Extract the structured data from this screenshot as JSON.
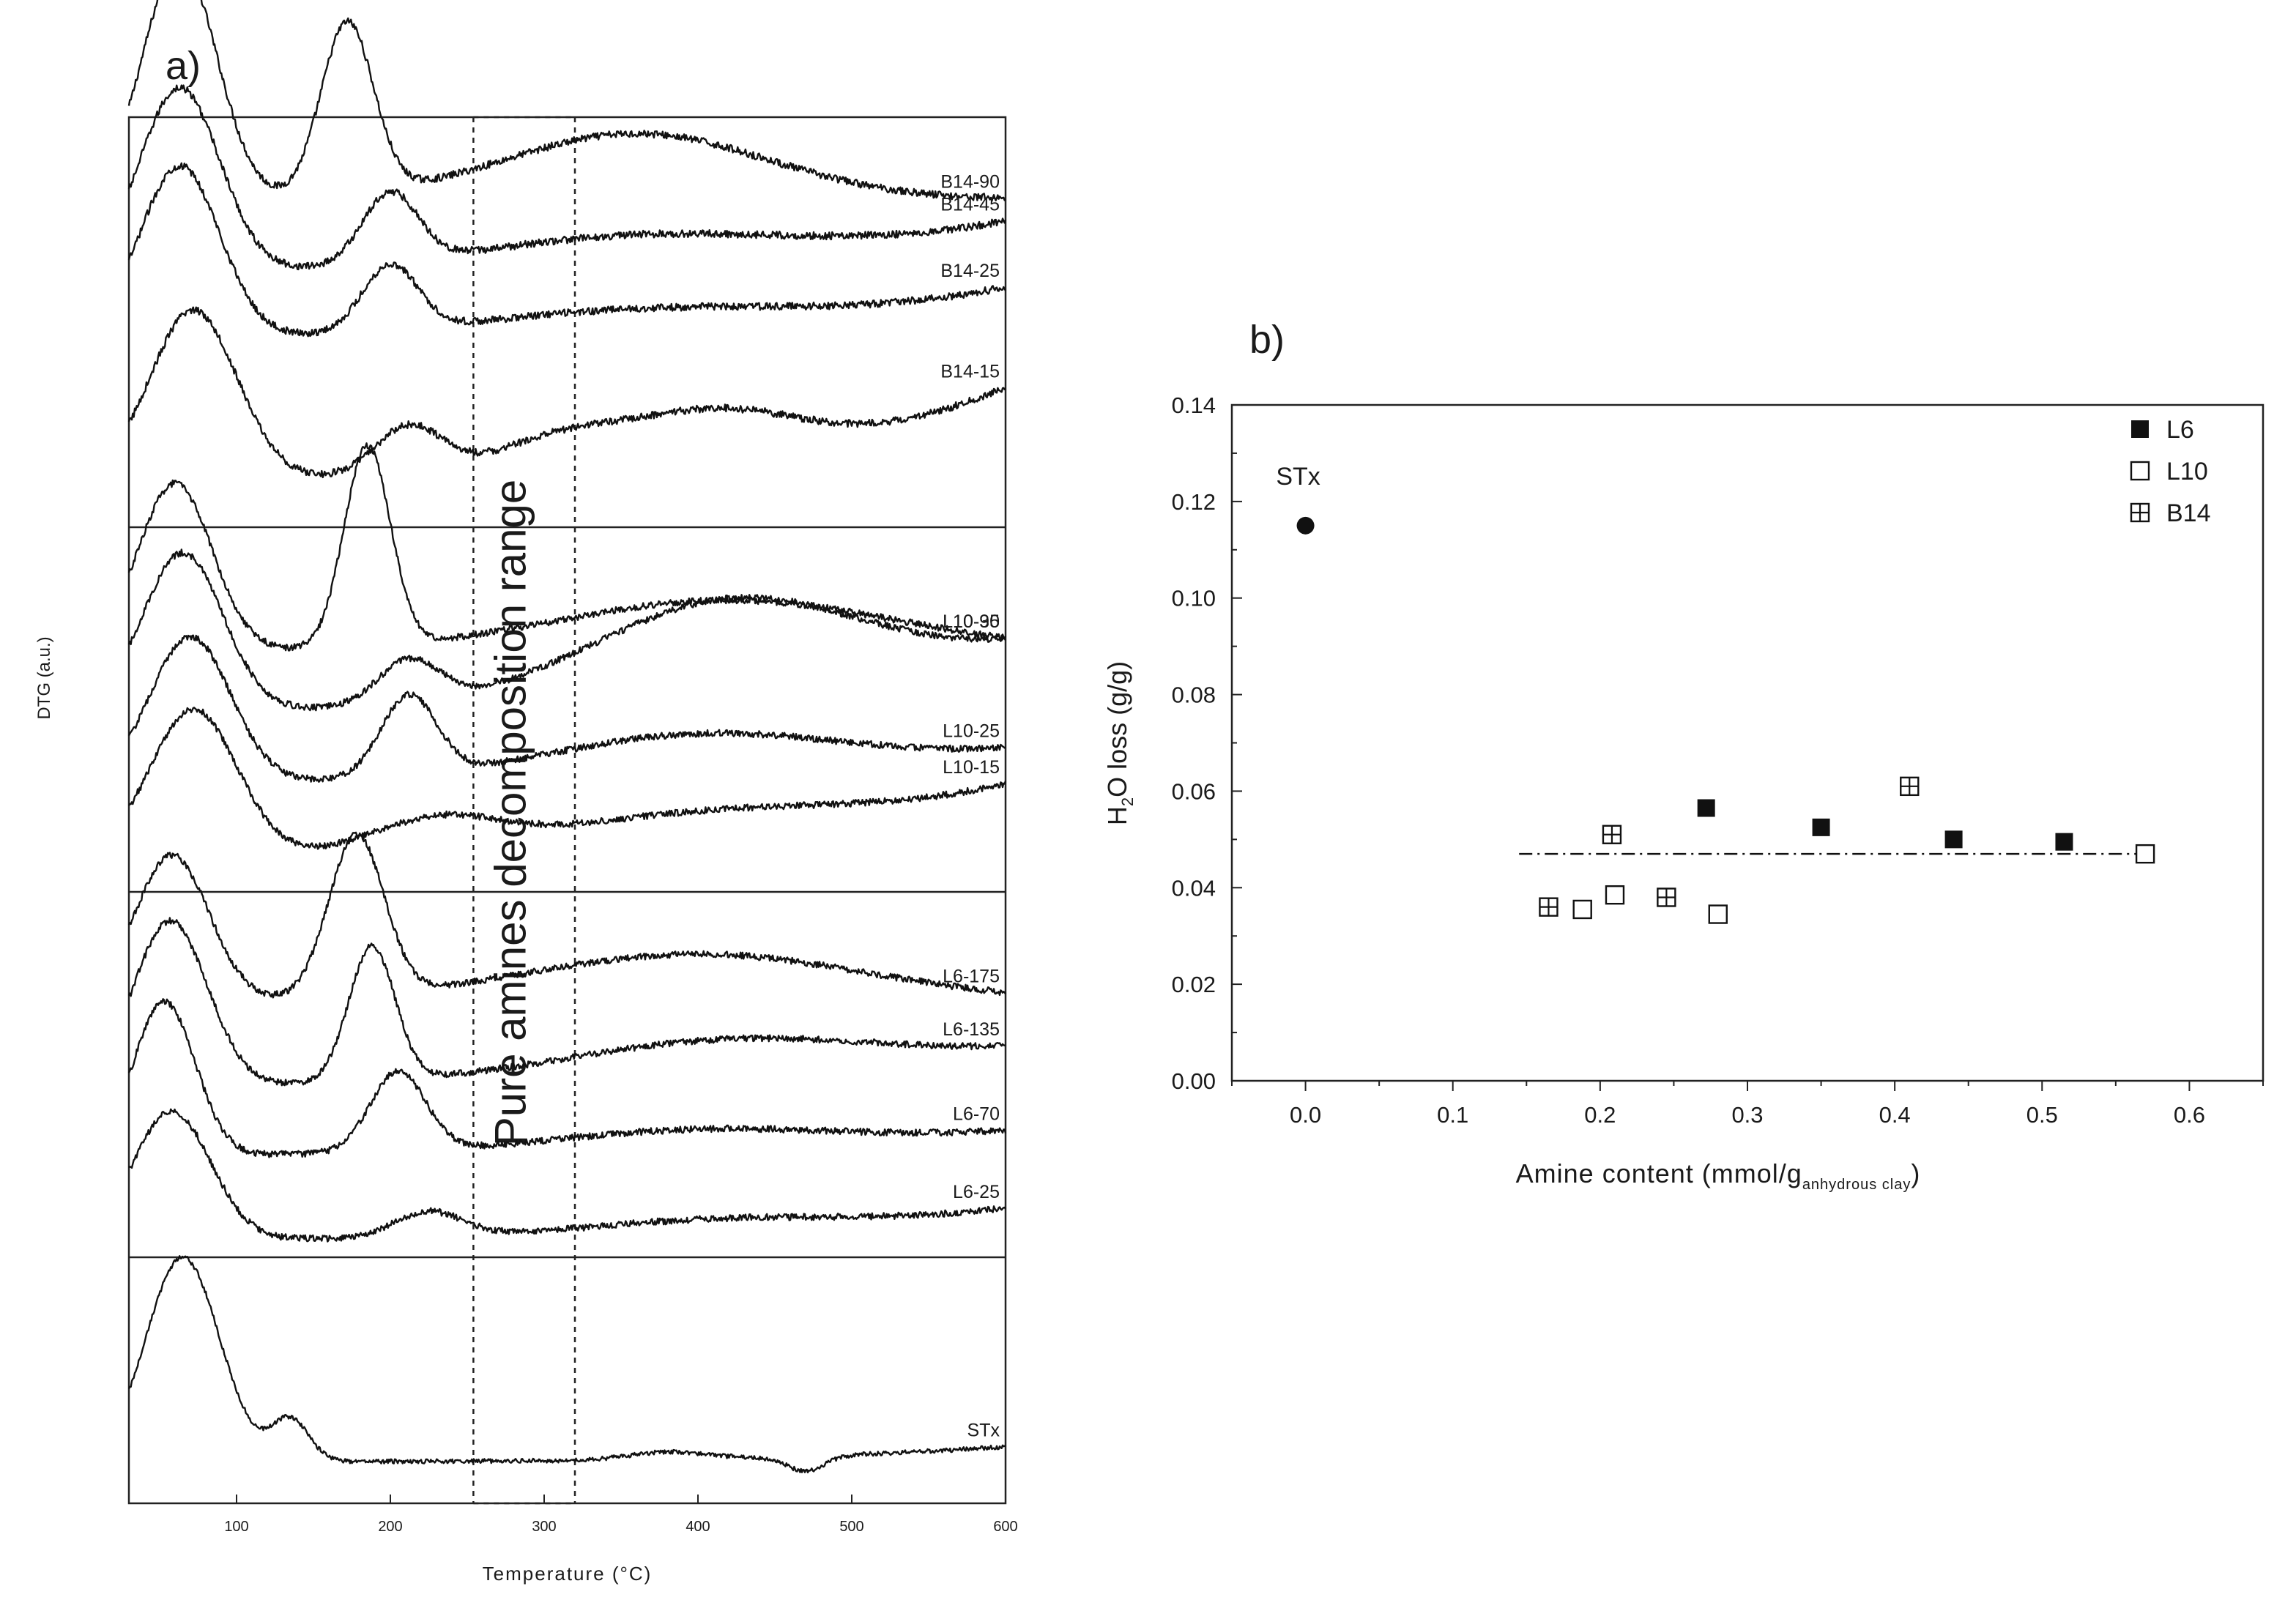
{
  "chart_data": [
    {
      "panel": "a)",
      "type": "line",
      "xlabel": "Temperature (°C)",
      "ylabel": "DTG (a.u.)",
      "xlim": [
        30,
        600
      ],
      "xticks": [
        100,
        200,
        300,
        400,
        500,
        600
      ],
      "annotation": "Pure amines decomposition range",
      "range_lines": [
        254,
        320
      ],
      "series": [
        {
          "name": "B14-90",
          "subpanel": 0,
          "baseline": 0.2,
          "peaks": [
            [
              63,
              24,
              0.58
            ],
            [
              172,
              17,
              0.42
            ],
            [
              360,
              85,
              0.16
            ]
          ],
          "tail": 0.0
        },
        {
          "name": "B14-45",
          "subpanel": 0,
          "baseline": 0.38,
          "peaks": [
            [
              63,
              26,
              0.45
            ],
            [
              200,
              18,
              0.17
            ],
            [
              360,
              110,
              0.08
            ]
          ],
          "tail": 0.12
        },
        {
          "name": "B14-25",
          "subpanel": 0,
          "baseline": 0.54,
          "peaks": [
            [
              63,
              26,
              0.42
            ],
            [
              200,
              18,
              0.16
            ],
            [
              360,
              110,
              0.06
            ]
          ],
          "tail": 0.12
        },
        {
          "name": "B14-15",
          "subpanel": 0,
          "baseline": 0.88,
          "peaks": [
            [
              72,
              28,
              0.41
            ],
            [
              212,
              22,
              0.12
            ],
            [
              310,
              45,
              0.08
            ],
            [
              410,
              55,
              0.12
            ]
          ],
          "tail": 0.22
        },
        {
          "name": "L10-90",
          "subpanel": 1,
          "baseline": 0.34,
          "peaks": [
            [
              60,
              24,
              0.46
            ],
            [
              185,
              15,
              0.55
            ],
            [
              420,
              110,
              0.14
            ]
          ],
          "tail": 0.0
        },
        {
          "name": "L10-35",
          "subpanel": 1,
          "baseline": 0.5,
          "peaks": [
            [
              65,
              26,
              0.43
            ],
            [
              212,
              20,
              0.12
            ],
            [
              420,
              90,
              0.27
            ]
          ],
          "tail": 0.16
        },
        {
          "name": "L10-25",
          "subpanel": 1,
          "baseline": 0.7,
          "peaks": [
            [
              70,
              26,
              0.4
            ],
            [
              212,
              18,
              0.22
            ],
            [
              400,
              100,
              0.12
            ]
          ],
          "tail": 0.08
        },
        {
          "name": "L10-15",
          "subpanel": 1,
          "baseline": 0.9,
          "peaks": [
            [
              72,
              28,
              0.4
            ],
            [
              230,
              40,
              0.08
            ],
            [
              400,
              110,
              0.09
            ]
          ],
          "tail": 0.18
        },
        {
          "name": "L6-175",
          "subpanel": 2,
          "baseline": 0.3,
          "peaks": [
            [
              58,
              24,
              0.4
            ],
            [
              178,
              18,
              0.44
            ],
            [
              400,
              110,
              0.13
            ]
          ],
          "tail": 0.0
        },
        {
          "name": "L6-135",
          "subpanel": 2,
          "baseline": 0.53,
          "peaks": [
            [
              57,
              24,
              0.45
            ],
            [
              188,
              15,
              0.37
            ],
            [
              420,
              110,
              0.11
            ]
          ],
          "tail": 0.08
        },
        {
          "name": "L6-70",
          "subpanel": 2,
          "baseline": 0.72,
          "peaks": [
            [
              53,
              20,
              0.42
            ],
            [
              205,
              18,
              0.22
            ],
            [
              400,
              100,
              0.06
            ]
          ],
          "tail": 0.06
        },
        {
          "name": "L6-25",
          "subpanel": 2,
          "baseline": 0.95,
          "peaks": [
            [
              58,
              25,
              0.35
            ],
            [
              225,
              22,
              0.07
            ],
            [
              410,
              90,
              0.04
            ]
          ],
          "tail": 0.08
        },
        {
          "name": "STx",
          "subpanel": 3,
          "baseline": 0.83,
          "peaks": [
            [
              65,
              24,
              0.83
            ],
            [
              135,
              12,
              0.17
            ],
            [
              380,
              25,
              0.03
            ],
            [
              470,
              12,
              -0.06
            ]
          ],
          "tail": 0.06
        }
      ]
    },
    {
      "panel": "b)",
      "type": "scatter",
      "xlabel": "Amine content (mmol/g",
      "xlabel_sub": "anhydrous clay",
      "xlabel_end": ")",
      "ylabel": "H",
      "ylabel_sub": "2",
      "ylabel_end": "O loss (g/g)",
      "xlim": [
        -0.05,
        0.65
      ],
      "ylim": [
        0.0,
        0.14
      ],
      "xticks": [
        "0.0",
        "0.1",
        "0.2",
        "0.3",
        "0.4",
        "0.5",
        "0.6"
      ],
      "yticks": [
        "0.00",
        "0.02",
        "0.04",
        "0.06",
        "0.08",
        "0.10",
        "0.12",
        "0.14"
      ],
      "legend_position": "top-right",
      "series": [
        {
          "name": "STx",
          "marker": "filled-circle",
          "x": [
            0.0
          ],
          "y": [
            0.115
          ]
        },
        {
          "name": "L6",
          "marker": "filled-square",
          "x": [
            0.272,
            0.35,
            0.44,
            0.515
          ],
          "y": [
            0.0565,
            0.0525,
            0.05,
            0.0495
          ]
        },
        {
          "name": "L10",
          "marker": "open-square",
          "x": [
            0.188,
            0.21,
            0.28,
            0.57
          ],
          "y": [
            0.0355,
            0.0385,
            0.0345,
            0.047
          ]
        },
        {
          "name": "B14",
          "marker": "crossed-square",
          "x": [
            0.165,
            0.208,
            0.245,
            0.41
          ],
          "y": [
            0.036,
            0.051,
            0.038,
            0.061
          ]
        }
      ],
      "reference_line": {
        "style": "dash-dot",
        "x": [
          0.145,
          0.57
        ],
        "y": [
          0.047,
          0.047
        ]
      },
      "point_label": {
        "text": "STx",
        "x": 0.0,
        "y": 0.115
      }
    }
  ]
}
